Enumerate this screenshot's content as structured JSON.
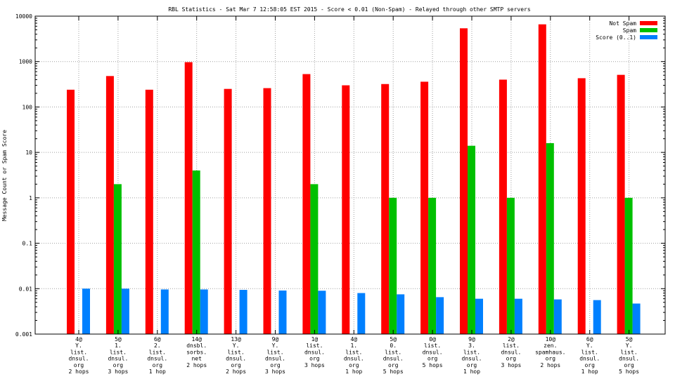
{
  "chart_data": {
    "type": "bar",
    "title": "RBL Statistics - Sat Mar  7 12:58:05 EST 2015 - Score < 0.01 (Non-Spam) - Relayed through other SMTP servers",
    "xlabel": "",
    "ylabel": "Message Count or Spam Score",
    "yscale": "log",
    "ylim": [
      0.001,
      10000
    ],
    "yticks": [
      "0.001",
      "0.01",
      "0.1",
      "1",
      "10",
      "100",
      "1000",
      "10000"
    ],
    "grid": true,
    "legend_position": "top-right",
    "categories": [
      [
        "4@",
        "Y.",
        "list.",
        "dnsul.",
        "org",
        "2 hops"
      ],
      [
        "5@",
        "1.",
        "list.",
        "dnsul.",
        "org",
        "3 hops"
      ],
      [
        "6@",
        "2.",
        "list.",
        "dnsul.",
        "org",
        "1 hop"
      ],
      [
        "14@",
        "dnsbl.",
        "sorbs.",
        "net",
        "2 hops"
      ],
      [
        "13@",
        "Y.",
        "list.",
        "dnsul.",
        "org",
        "2 hops"
      ],
      [
        "9@",
        "Y.",
        "list.",
        "dnsul.",
        "org",
        "3 hops"
      ],
      [
        "1@",
        "list.",
        "dnsul.",
        "org",
        "3 hops"
      ],
      [
        "4@",
        "1.",
        "list.",
        "dnsul.",
        "org",
        "1 hop"
      ],
      [
        "5@",
        "0.",
        "list.",
        "dnsul.",
        "org",
        "5 hops"
      ],
      [
        "0@",
        "list.",
        "dnsul.",
        "org",
        "5 hops"
      ],
      [
        "9@",
        "3.",
        "list.",
        "dnsul.",
        "org",
        "1 hop"
      ],
      [
        "2@",
        "list.",
        "dnsul.",
        "org",
        "3 hops"
      ],
      [
        "10@",
        "zen.",
        "spamhaus.",
        "org",
        "2 hops"
      ],
      [
        "6@",
        "Y.",
        "list.",
        "dnsul.",
        "org",
        "1 hop"
      ],
      [
        "5@",
        "Y.",
        "list.",
        "dnsul.",
        "org",
        "5 hops"
      ]
    ],
    "series": [
      {
        "name": "Not Spam",
        "color": "#ff0000",
        "values": [
          240,
          480,
          240,
          970,
          250,
          260,
          530,
          300,
          320,
          360,
          5400,
          400,
          6600,
          430,
          510
        ]
      },
      {
        "name": "Spam",
        "color": "#00c000",
        "values": [
          null,
          2,
          null,
          4,
          null,
          null,
          2,
          null,
          1,
          1,
          14,
          1,
          16,
          null,
          1
        ]
      },
      {
        "name": "Score (0..1)",
        "color": "#0080ff",
        "values": [
          0.01,
          0.01,
          0.0096,
          0.0096,
          0.0094,
          0.0091,
          0.009,
          0.008,
          0.0075,
          0.0065,
          0.006,
          0.006,
          0.0058,
          0.0056,
          0.0047
        ]
      }
    ]
  }
}
